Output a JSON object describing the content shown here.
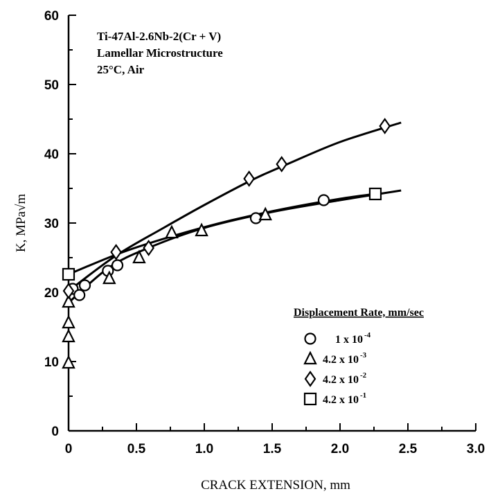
{
  "chart_data": {
    "type": "scatter",
    "annotations": [
      "Ti-47Al-2.6Nb-2(Cr + V)",
      "Lamellar Microstructure",
      "25°C, Air"
    ],
    "xlabel": "CRACK EXTENSION, mm",
    "ylabel": "K, MPa√m",
    "xlim": [
      0,
      3.0
    ],
    "ylim": [
      0,
      60
    ],
    "x_ticks": [
      "0",
      "0.5",
      "1.0",
      "1.5",
      "2.0",
      "2.5",
      "3.0"
    ],
    "y_ticks": [
      "0",
      "10",
      "20",
      "30",
      "40",
      "50",
      "60"
    ],
    "grid": false,
    "legend_placement": "lower-right",
    "legend_title": "Displacement Rate, mm/sec",
    "series": [
      {
        "name": "1 x 10-4",
        "label_base": "1 x 10",
        "label_exp": "-4",
        "marker": "circle",
        "x": [
          0.03,
          0.08,
          0.12,
          0.29,
          0.36,
          1.38,
          1.88
        ],
        "y": [
          20.5,
          19.6,
          21.0,
          23.1,
          23.9,
          30.7,
          33.3
        ]
      },
      {
        "name": "4.2 x 10-3",
        "label_base": "4.2 x 10",
        "label_exp": "-3",
        "marker": "triangle",
        "x": [
          0.0,
          0.0,
          0.0,
          0.0,
          0.3,
          0.52,
          0.76,
          0.98,
          1.45
        ],
        "y": [
          9.8,
          13.6,
          15.6,
          18.6,
          22.0,
          25.0,
          28.6,
          28.9,
          31.2
        ]
      },
      {
        "name": "4.2 x 10-2",
        "label_base": "4.2 x 10",
        "label_exp": "-2",
        "marker": "diamond",
        "x": [
          0.0,
          0.35,
          0.59,
          1.33,
          1.57,
          2.33
        ],
        "y": [
          20.2,
          25.8,
          26.4,
          36.4,
          38.5,
          44.0
        ]
      },
      {
        "name": "4.2 x 10-1",
        "label_base": "4.2 x 10",
        "label_exp": "-1",
        "marker": "square",
        "x": [
          0.0,
          2.26
        ],
        "y": [
          22.6,
          34.2
        ]
      }
    ],
    "fit_curves": [
      {
        "x": [
          0.0,
          0.3,
          0.6,
          1.0,
          1.5,
          2.0,
          2.45
        ],
        "y": [
          18.5,
          23.6,
          26.5,
          29.3,
          31.6,
          33.3,
          34.7
        ]
      },
      {
        "x": [
          0.0,
          0.35,
          0.7,
          1.0,
          1.35,
          1.6,
          2.0,
          2.45
        ],
        "y": [
          20.2,
          25.3,
          29.3,
          32.6,
          36.2,
          38.4,
          41.7,
          44.5
        ]
      },
      {
        "x": [
          0.0,
          0.4,
          0.8,
          1.2,
          1.6,
          2.0,
          2.26
        ],
        "y": [
          22.6,
          25.8,
          28.3,
          30.4,
          32.1,
          33.5,
          34.2
        ]
      }
    ]
  }
}
